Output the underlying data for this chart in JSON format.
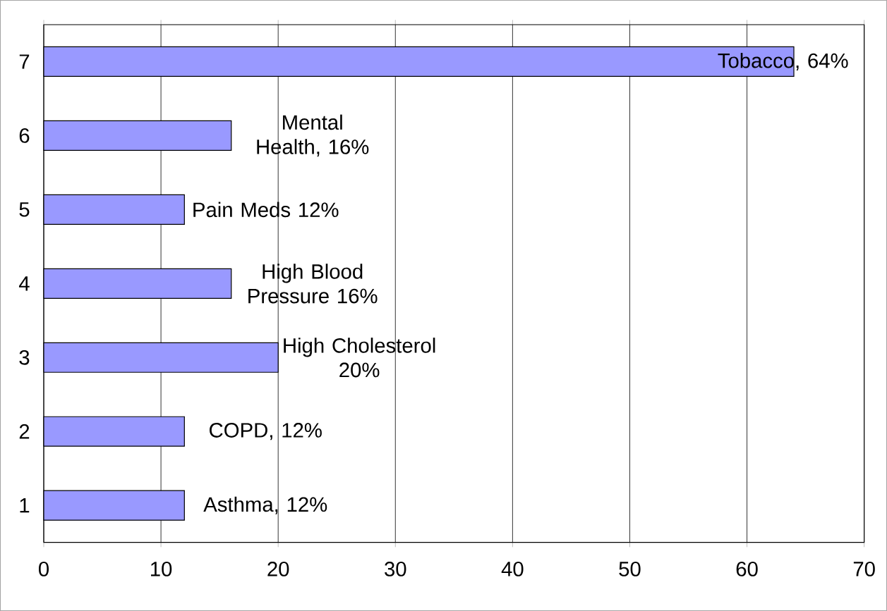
{
  "chart_data": {
    "type": "bar",
    "orientation": "horizontal",
    "categories": [
      "7",
      "6",
      "5",
      "4",
      "3",
      "2",
      "1"
    ],
    "values": [
      64,
      16,
      12,
      16,
      20,
      12,
      12
    ],
    "value_labels": [
      "Tobacco, 64%",
      "Mental Health, 16%",
      "Pain Meds 12%",
      "High Blood Pressure 16%",
      "High Cholesterol 20%",
      "COPD, 12%",
      "Asthma, 12%"
    ],
    "color": "#9999ff",
    "xlim": [
      0,
      70
    ],
    "xticks": [
      0,
      10,
      20,
      30,
      40,
      50,
      60,
      70
    ],
    "grid": "x"
  }
}
